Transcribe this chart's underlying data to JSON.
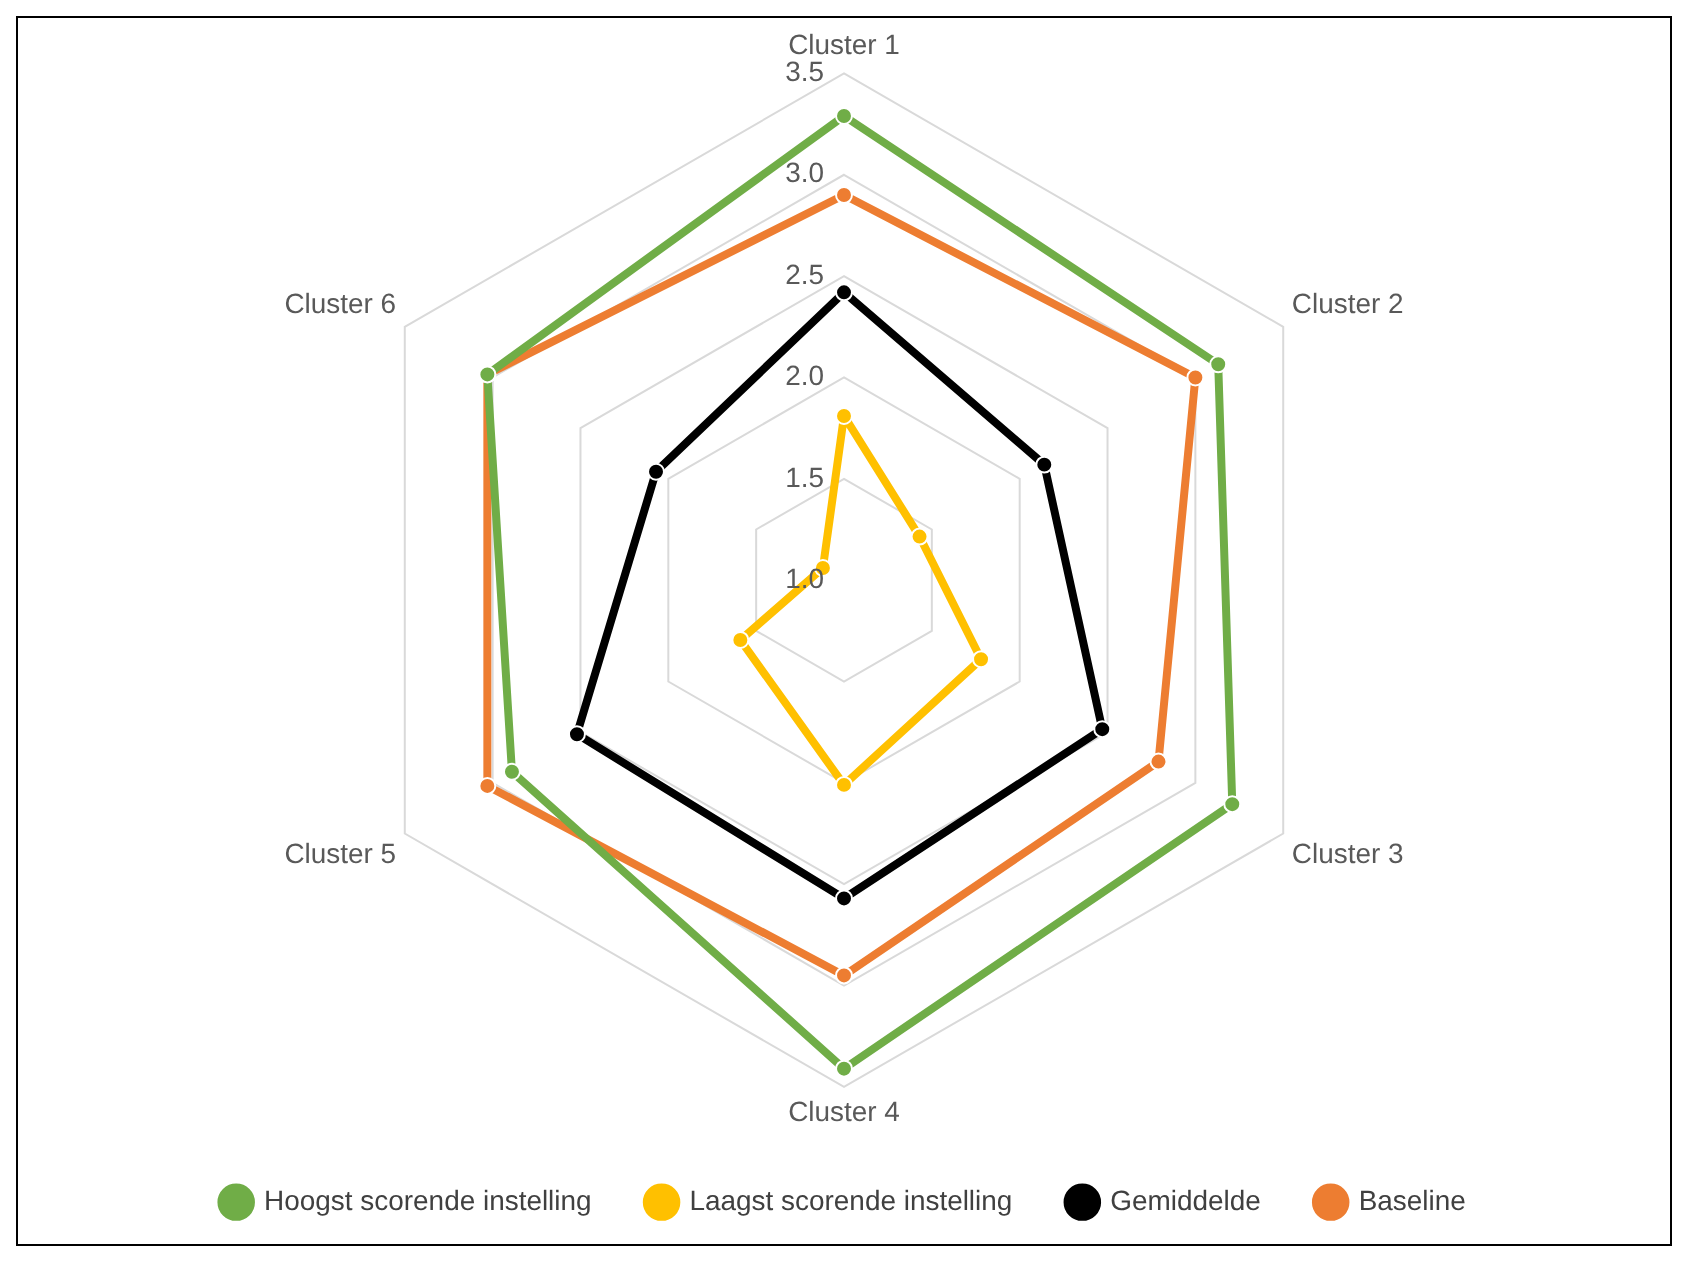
{
  "chart_data": {
    "type": "radar",
    "categories": [
      "Cluster 1",
      "Cluster 2",
      "Cluster 3",
      "Cluster 4",
      "Cluster 5",
      "Cluster 6"
    ],
    "series": [
      {
        "name": "Hoogst scorende instelling",
        "color": "#70ad47",
        "values": [
          3.29,
          3.13,
          3.21,
          3.41,
          2.89,
          3.03
        ]
      },
      {
        "name": "Laagst scorende instelling",
        "color": "#ffc000",
        "values": [
          1.81,
          1.43,
          1.78,
          2.01,
          1.59,
          1.12
        ]
      },
      {
        "name": "Gemiddelde",
        "color": "#000000",
        "values": [
          2.42,
          2.14,
          2.47,
          2.57,
          2.52,
          2.07
        ]
      },
      {
        "name": "Baseline",
        "color": "#ed7d31",
        "values": [
          2.9,
          3.0,
          2.79,
          2.95,
          3.03,
          3.03
        ]
      }
    ],
    "ylim": [
      1,
      3.5
    ],
    "yticks": [
      {
        "value": 1,
        "label": "1.0"
      },
      {
        "value": 1.5,
        "label": "1.5"
      },
      {
        "value": 2,
        "label": "2.0"
      },
      {
        "value": 2.5,
        "label": "2.5"
      },
      {
        "value": 3,
        "label": "3.0"
      },
      {
        "value": 3.5,
        "label": "3.5"
      }
    ],
    "grid": true,
    "legend": "bottom",
    "marker": "circle",
    "line_style": "solid"
  }
}
